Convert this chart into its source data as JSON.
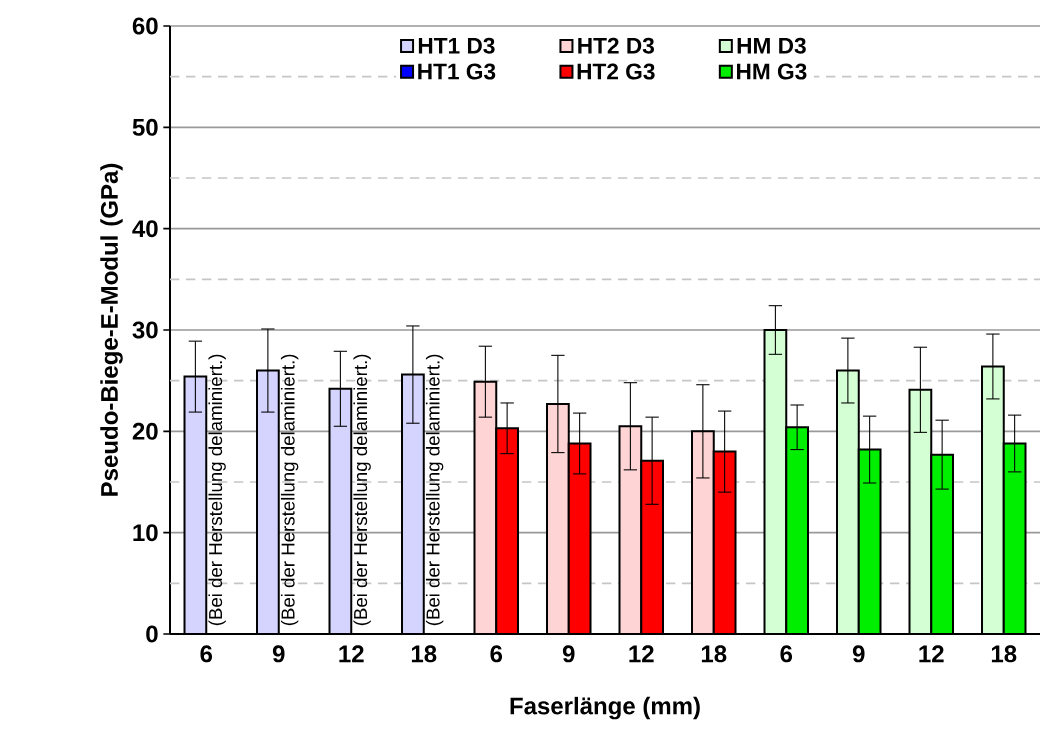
{
  "chart_data": {
    "type": "bar",
    "xlabel": "Faserlänge (mm)",
    "ylabel": "Pseudo-Biege-E-Modul (GPa)",
    "categories": [
      "6",
      "9",
      "12",
      "18",
      "6",
      "9",
      "12",
      "18",
      "6",
      "9",
      "12",
      "18"
    ],
    "series": [
      {
        "name": "HT1 D3",
        "color": "#d4d4ff",
        "values": [
          25.4,
          26.0,
          24.2,
          25.6,
          null,
          null,
          null,
          null,
          null,
          null,
          null,
          null
        ],
        "errors": [
          3.5,
          4.1,
          3.7,
          4.8,
          null,
          null,
          null,
          null,
          null,
          null,
          null,
          null
        ]
      },
      {
        "name": "HT1 G3",
        "color": "#0000ff",
        "values": [
          null,
          null,
          null,
          null,
          null,
          null,
          null,
          null,
          null,
          null,
          null,
          null
        ]
      },
      {
        "name": "HT2 D3",
        "color": "#ffd4d4",
        "values": [
          null,
          null,
          null,
          null,
          24.9,
          22.7,
          20.5,
          20.0,
          null,
          null,
          null,
          null
        ],
        "errors": [
          null,
          null,
          null,
          null,
          3.5,
          4.8,
          4.3,
          4.6,
          null,
          null,
          null,
          null
        ]
      },
      {
        "name": "HT2 G3",
        "color": "#ff0000",
        "values": [
          null,
          null,
          null,
          null,
          20.3,
          18.8,
          17.1,
          18.0,
          null,
          null,
          null,
          null
        ],
        "errors": [
          null,
          null,
          null,
          null,
          2.5,
          3.0,
          4.3,
          4.0,
          null,
          null,
          null,
          null
        ]
      },
      {
        "name": "HM D3",
        "color": "#d4ffd4",
        "values": [
          null,
          null,
          null,
          null,
          null,
          null,
          null,
          null,
          30.0,
          26.0,
          24.1,
          26.4
        ],
        "errors": [
          null,
          null,
          null,
          null,
          null,
          null,
          null,
          null,
          2.4,
          3.2,
          4.2,
          3.2
        ]
      },
      {
        "name": "HM G3",
        "color": "#00ee00",
        "values": [
          null,
          null,
          null,
          null,
          null,
          null,
          null,
          null,
          20.4,
          18.2,
          17.7,
          18.8
        ],
        "errors": [
          null,
          null,
          null,
          null,
          null,
          null,
          null,
          null,
          2.2,
          3.3,
          3.4,
          2.8
        ]
      }
    ],
    "annotations": [
      "(Bei der Herstellung delaminiert.)",
      "(Bei der Herstellung delaminiert.)",
      "(Bei der Herstellung delaminiert.)",
      "(Bei der Herstellung delaminiert.)"
    ],
    "ylim": [
      0,
      60
    ],
    "yticks": [
      0,
      {
        "value": 5,
        "label": null
      },
      10,
      {
        "value": 15,
        "label": null
      },
      20,
      {
        "value": 25,
        "label": null
      },
      30,
      {
        "value": 35,
        "label": null
      },
      40,
      {
        "value": 45,
        "label": null
      },
      50,
      {
        "value": 55,
        "label": null
      },
      60
    ],
    "grid": true,
    "legend": "top"
  }
}
